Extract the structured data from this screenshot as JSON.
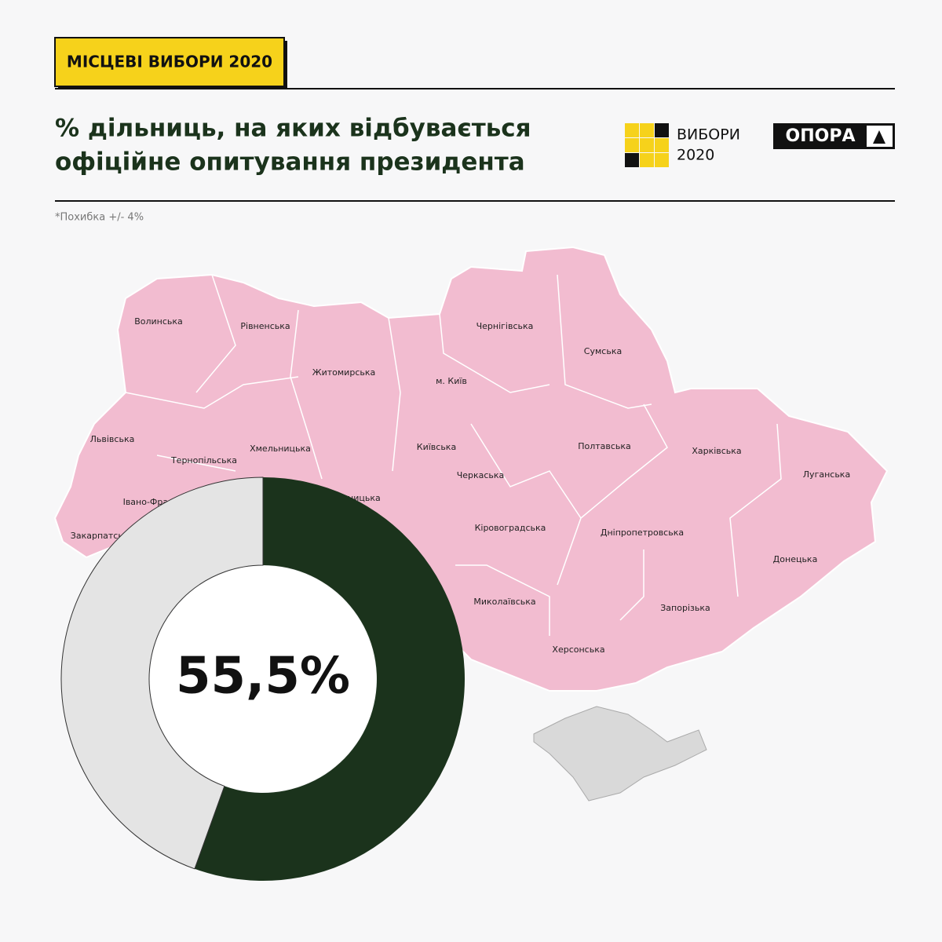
{
  "header": {
    "tag": "МІСЦЕВІ ВИБОРИ 2020",
    "title_lines": [
      "% дільниць, на яких відбувається",
      "офіційне опитування президента"
    ],
    "logo_vybory": [
      "ВИБОРИ",
      "2020"
    ],
    "logo_opora": "ОПОРА"
  },
  "note": "*Похибка +/- 4%",
  "map": {
    "regions": [
      {
        "label": "Волинська"
      },
      {
        "label": "Рівненська"
      },
      {
        "label": "Житомирська"
      },
      {
        "label": "Чернігівська"
      },
      {
        "label": "Сумська"
      },
      {
        "label": "м. Київ"
      },
      {
        "label": "Львівська"
      },
      {
        "label": "Тернопільська"
      },
      {
        "label": "Хмельницька"
      },
      {
        "label": "Київська"
      },
      {
        "label": "Черкаська"
      },
      {
        "label": "Полтавська"
      },
      {
        "label": "Харківська"
      },
      {
        "label": "Луганська"
      },
      {
        "label": "Кіровоградська"
      },
      {
        "label": "Дніпропетровська"
      },
      {
        "label": "Донецька"
      },
      {
        "label": "Миколаївська"
      },
      {
        "label": "Запорізька"
      },
      {
        "label": "Херсонська"
      },
      {
        "label": "Закарпатська"
      },
      {
        "label": "Вінницька"
      },
      {
        "label": "Івано-Франківська"
      }
    ]
  },
  "chart_data": {
    "type": "donut",
    "values": [
      55.5,
      44.5
    ],
    "value_labels": [
      "55,5%",
      null
    ],
    "colors": [
      "#1b331c",
      "#e4e4e4"
    ]
  }
}
